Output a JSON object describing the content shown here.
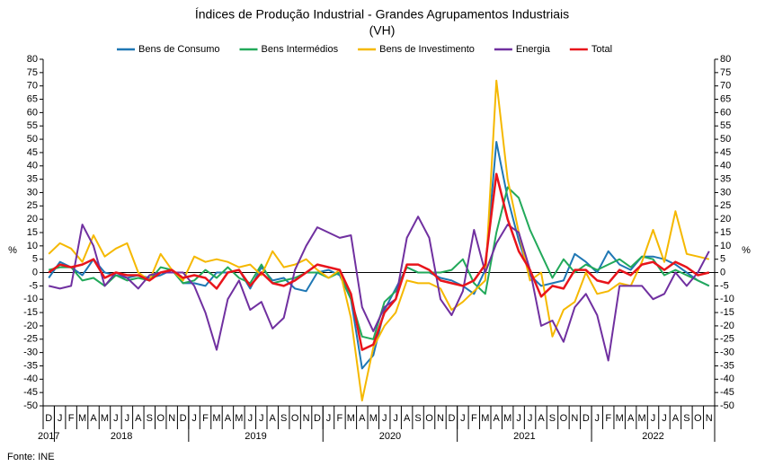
{
  "chart_data": {
    "type": "line",
    "title": "Índices de Produção Industrial - Grandes Agrupamentos Industriais",
    "subtitle": "(VH)",
    "y_label": "%",
    "y2_label": "%",
    "source": "Fonte: INE",
    "categories": [
      "D",
      "J",
      "F",
      "M",
      "A",
      "M",
      "J",
      "J",
      "A",
      "S",
      "O",
      "N",
      "D",
      "J",
      "F",
      "M",
      "A",
      "M",
      "J",
      "J",
      "A",
      "S",
      "O",
      "N",
      "D",
      "J",
      "F",
      "M",
      "A",
      "M",
      "J",
      "J",
      "A",
      "S",
      "O",
      "N",
      "D",
      "J",
      "F",
      "M",
      "A",
      "M",
      "J",
      "J",
      "A",
      "S",
      "O",
      "N",
      "D",
      "J",
      "F",
      "M",
      "A",
      "M",
      "J",
      "J",
      "A",
      "S",
      "O",
      "N"
    ],
    "years": [
      "2017",
      "2018",
      "2019",
      "2020",
      "2021",
      "2022"
    ],
    "ylim": [
      -50,
      80
    ],
    "yticks": [
      -50,
      -45,
      -40,
      -35,
      -30,
      -25,
      -20,
      -15,
      -10,
      -5,
      0,
      5,
      10,
      15,
      20,
      25,
      30,
      35,
      40,
      45,
      50,
      55,
      60,
      65,
      70,
      75,
      80
    ],
    "y2lim": [
      -50,
      80
    ],
    "y2ticks": [
      -50,
      -45,
      -40,
      -35,
      -30,
      -25,
      -20,
      -15,
      -10,
      -5,
      0,
      5,
      10,
      15,
      20,
      25,
      30,
      35,
      40,
      45,
      50,
      55,
      60,
      65,
      70,
      75,
      80
    ],
    "grid": false,
    "legend": "top",
    "series": [
      {
        "name": "Bens de Consumo",
        "color": "#1f77b4",
        "values": [
          -2,
          4,
          2,
          -1,
          5,
          0,
          -1,
          -2,
          -1,
          -2,
          -1,
          1,
          -4,
          -4,
          -5,
          0,
          0,
          1,
          -6,
          2,
          -3,
          -2,
          -6,
          -7,
          0,
          1,
          -1,
          -10,
          -36,
          -31,
          -14,
          -6,
          2,
          0,
          0,
          -2,
          -3,
          -5,
          -8,
          1,
          49,
          28,
          12,
          -1,
          -5,
          -4,
          -3,
          7,
          4,
          0,
          8,
          3,
          1,
          6,
          6,
          5,
          3,
          0,
          -3,
          -5
        ]
      },
      {
        "name": "Bens Intermédios",
        "color": "#22a95a",
        "values": [
          1,
          2,
          2,
          -3,
          -2,
          -5,
          -1,
          -3,
          -2,
          -3,
          2,
          1,
          -4,
          -3,
          1,
          -2,
          2,
          -2,
          -4,
          3,
          -4,
          -3,
          -2,
          0,
          0,
          -2,
          0,
          -10,
          -24,
          -25,
          -11,
          -7,
          2,
          0,
          0,
          0,
          1,
          5,
          -4,
          -8,
          15,
          32,
          28,
          16,
          7,
          -2,
          5,
          0,
          3,
          1,
          3,
          5,
          2,
          6,
          5,
          -1,
          1,
          -1,
          -3,
          -5
        ]
      },
      {
        "name": "Bens de Investimento",
        "color": "#f5b800",
        "values": [
          7,
          11,
          9,
          4,
          14,
          6,
          9,
          11,
          0,
          -3,
          7,
          1,
          -3,
          6,
          4,
          5,
          4,
          2,
          3,
          -1,
          8,
          2,
          3,
          5,
          1,
          -2,
          1,
          -17,
          -48,
          -28,
          -20,
          -15,
          -3,
          -4,
          -4,
          -6,
          -14,
          -11,
          -7,
          -3,
          72,
          35,
          15,
          -3,
          0,
          -24,
          -14,
          -11,
          0,
          -8,
          -7,
          -4,
          -5,
          4,
          16,
          4,
          23,
          7,
          6,
          5
        ]
      },
      {
        "name": "Energia",
        "color": "#7030a0",
        "values": [
          -5,
          -6,
          -5,
          18,
          10,
          -5,
          0,
          -2,
          -6,
          -1,
          0,
          0,
          0,
          -5,
          -15,
          -29,
          -10,
          -3,
          -14,
          -11,
          -21,
          -17,
          1,
          10,
          17,
          15,
          13,
          14,
          -13,
          -22,
          -13,
          -10,
          13,
          21,
          13,
          -10,
          -16,
          -7,
          16,
          0,
          11,
          18,
          15,
          1,
          -20,
          -18,
          -26,
          -13,
          -8,
          -16,
          -33,
          -5,
          -5,
          -5,
          -10,
          -8,
          0,
          -5,
          0,
          8
        ]
      },
      {
        "name": "Total",
        "color": "#e8141b",
        "values": [
          0,
          3,
          2,
          3,
          5,
          -2,
          0,
          -1,
          -1,
          -3,
          0,
          1,
          -2,
          -1,
          -2,
          -6,
          0,
          1,
          -5,
          0,
          -4,
          -5,
          -3,
          0,
          3,
          2,
          1,
          -8,
          -29,
          -27,
          -15,
          -10,
          3,
          3,
          1,
          -3,
          -4,
          -5,
          -3,
          3,
          37,
          20,
          8,
          1,
          -9,
          -5,
          -6,
          1,
          1,
          -3,
          -4,
          1,
          -1,
          3,
          4,
          1,
          4,
          2,
          -1,
          0
        ]
      }
    ]
  }
}
